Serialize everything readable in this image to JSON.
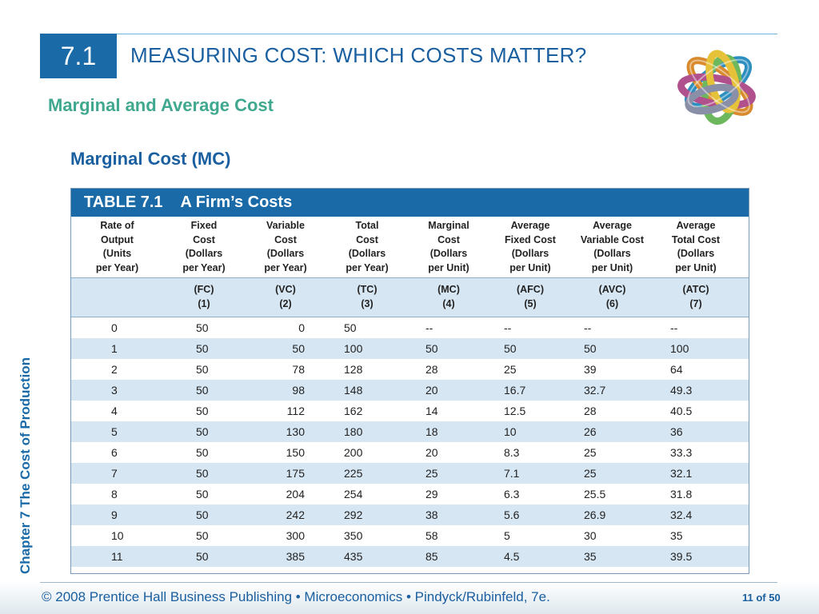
{
  "slide": {
    "section_number": "7.1",
    "title": "MEASURING COST: WHICH COSTS MATTER?",
    "subtitle": "Marginal and Average Cost",
    "heading": "Marginal Cost (MC)",
    "side_label": "Chapter 7  The Cost of Production",
    "footer": "© 2008 Prentice Hall Business Publishing  •  Microeconomics  •  Pindyck/Rubinfeld, 7e.",
    "page": "11 of 50"
  },
  "table": {
    "number": "TABLE 7.1",
    "caption": "A Firm’s Costs",
    "headers": [
      "Rate of\nOutput\n(Units\nper Year)",
      "Fixed\nCost\n(Dollars\nper Year)",
      "Variable\nCost\n(Dollars\nper Year)",
      "Total\nCost\n(Dollars\nper Year)",
      "Marginal\nCost\n(Dollars\nper Unit)",
      "Average\nFixed Cost\n(Dollars\nper Unit)",
      "Average\nVariable Cost\n(Dollars\nper Unit)",
      "Average\nTotal Cost\n(Dollars\nper Unit)"
    ],
    "symbols": [
      "",
      "(FC)\n(1)",
      "(VC)\n(2)",
      "(TC)\n(3)",
      "(MC)\n(4)",
      "(AFC)\n(5)",
      "(AVC)\n(6)",
      "(ATC)\n(7)"
    ],
    "rows": [
      [
        "0",
        "50",
        "0",
        "50",
        "--",
        "--",
        "--",
        "--"
      ],
      [
        "1",
        "50",
        "50",
        "100",
        "50",
        "50",
        "50",
        "100"
      ],
      [
        "2",
        "50",
        "78",
        "128",
        "28",
        "25",
        "39",
        "64"
      ],
      [
        "3",
        "50",
        "98",
        "148",
        "20",
        "16.7",
        "32.7",
        "49.3"
      ],
      [
        "4",
        "50",
        "112",
        "162",
        "14",
        "12.5",
        "28",
        "40.5"
      ],
      [
        "5",
        "50",
        "130",
        "180",
        "18",
        "10",
        "26",
        "36"
      ],
      [
        "6",
        "50",
        "150",
        "200",
        "20",
        "8.3",
        "25",
        "33.3"
      ],
      [
        "7",
        "50",
        "175",
        "225",
        "25",
        "7.1",
        "25",
        "32.1"
      ],
      [
        "8",
        "50",
        "204",
        "254",
        "29",
        "6.3",
        "25.5",
        "31.8"
      ],
      [
        "9",
        "50",
        "242",
        "292",
        "38",
        "5.6",
        "26.9",
        "32.4"
      ],
      [
        "10",
        "50",
        "300",
        "350",
        "58",
        "5",
        "30",
        "35"
      ],
      [
        "11",
        "50",
        "385",
        "435",
        "85",
        "4.5",
        "35",
        "39.5"
      ]
    ]
  },
  "colors": {
    "accent_blue": "#1a6aa8",
    "title_blue": "#1a5fa0",
    "subtitle_green": "#3fa88f",
    "row_shade": "#d6e6f3"
  },
  "icons": {
    "logo": "interlocking-rings-logo"
  }
}
